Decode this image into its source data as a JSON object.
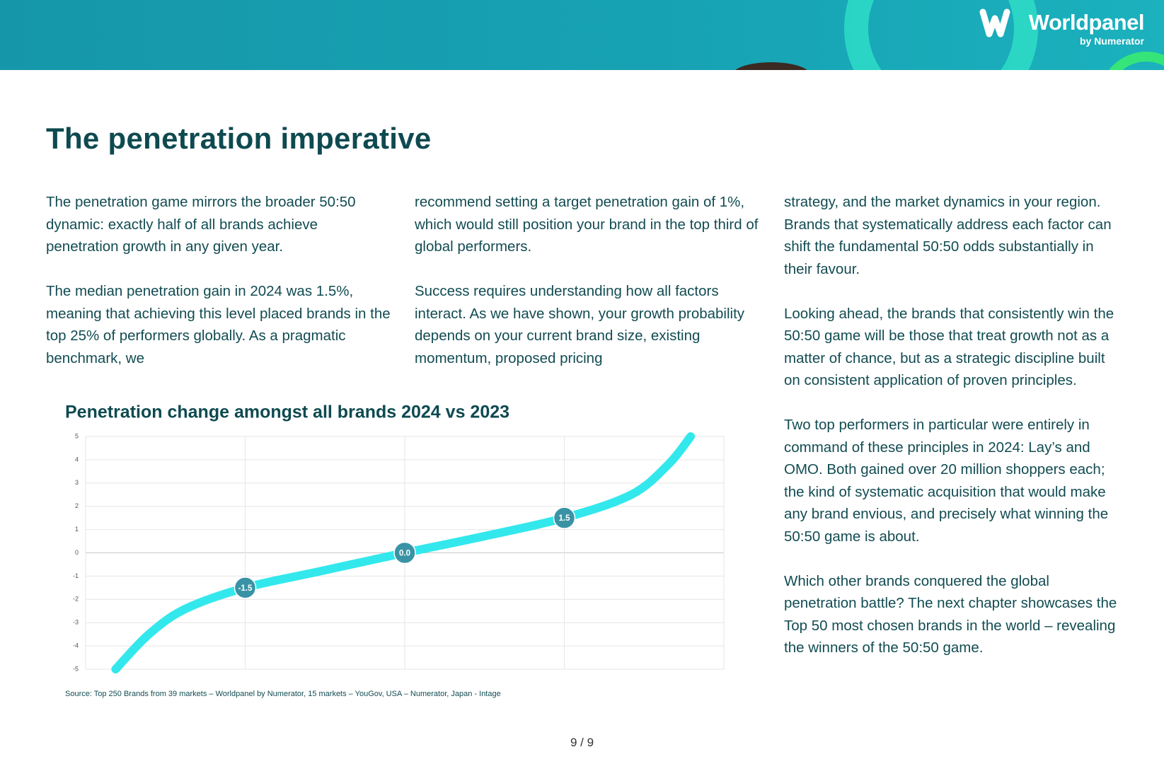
{
  "header": {
    "brand": "Worldpanel",
    "sub_brand": "by Numerator"
  },
  "title": "The penetration imperative",
  "columns": [
    [
      "The penetration game mirrors the broader 50:50 dynamic: exactly half of all brands achieve penetration growth in any given year.",
      "The median penetration gain in 2024 was 1.5%, meaning that achieving this level placed brands in the top 25% of performers globally. As a pragmatic benchmark, we"
    ],
    [
      "recommend setting a target penetration gain of 1%, which would still position your brand in the top third of global performers.",
      "Success requires understanding how all factors interact. As we have shown, your growth probability depends on your current brand size, existing momentum, proposed pricing"
    ],
    [
      "strategy, and the market dynamics in your region. Brands that systematically address each factor can shift the fundamental 50:50 odds substantially in their favour.",
      "Looking ahead, the brands that consistently win the 50:50 game will be those that treat growth not as a matter of chance, but as a strategic discipline built on consistent application of proven principles.",
      "Two top performers in particular were entirely in command of these principles in 2024: Lay’s and OMO. Both gained over 20 million shoppers each; the kind of systematic acquisition that would make any brand envious, and precisely what winning the 50:50 game is about.",
      "Which other brands conquered the global penetration battle? The next chapter showcases the Top 50 most chosen brands in the world – revealing the winners of the 50:50 game."
    ]
  ],
  "chart_data": {
    "type": "line",
    "title": "Penetration change amongst all brands 2024 vs 2023",
    "source": "Source: Top 250 Brands from 39 markets – Worldpanel by Numerator, 15 markets – YouGov, USA – Numerator, Japan - Intage",
    "x": [
      4.7,
      9.9,
      15.7,
      25,
      36.6,
      50,
      62.2,
      75,
      85.5,
      91.3,
      94.8
    ],
    "series": [
      {
        "color": "#33e8ec",
        "values": [
          -5,
          -3.5,
          -2.4,
          -1.5,
          -0.8,
          0,
          0.7,
          1.5,
          2.5,
          3.8,
          5
        ]
      }
    ],
    "xlim": [
      0,
      100
    ],
    "xticks": [
      0,
      25,
      50,
      75,
      100
    ],
    "x_tick_labels": false,
    "ylim": [
      -5,
      5
    ],
    "yticks": [
      5,
      4,
      3,
      2,
      1,
      0,
      -1,
      -2,
      -3,
      -4,
      -5
    ],
    "grid": true,
    "marker_color": "#3a93a5",
    "annotations": [
      {
        "x": 25,
        "y": -1.5,
        "label": "-1.5"
      },
      {
        "x": 50,
        "y": 0,
        "label": "0.0"
      },
      {
        "x": 75,
        "y": 1.5,
        "label": "1.5"
      }
    ]
  },
  "page_number": "9 / 9"
}
